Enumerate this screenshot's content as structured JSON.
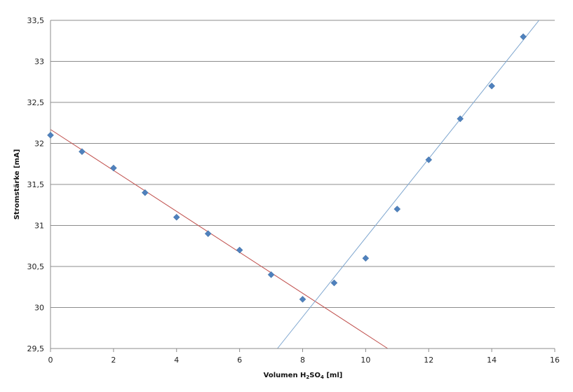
{
  "chart_data": {
    "type": "scatter",
    "title": "",
    "xlabel_parts": {
      "prefix": "Volumen H",
      "sub1": "2",
      "mid": "SO",
      "sub2": "4",
      "suffix": " [ml]"
    },
    "ylabel": "Stromstärke [mA]",
    "xlim": [
      0,
      16
    ],
    "ylim": [
      29.5,
      33.5
    ],
    "x_ticks": [
      "0",
      "2",
      "4",
      "6",
      "8",
      "10",
      "12",
      "14",
      "16"
    ],
    "y_ticks": [
      "29,5",
      "30",
      "30,5",
      "31",
      "31,5",
      "32",
      "32,5",
      "33",
      "33,5"
    ],
    "grid": "horizontal",
    "legend": "none",
    "series": [
      {
        "marker": "diamond",
        "color": "#4F81BD",
        "x": [
          0,
          1,
          2,
          3,
          4,
          5,
          6,
          7,
          8,
          9,
          10,
          11,
          12,
          13,
          14,
          15
        ],
        "y": [
          32.1,
          31.9,
          31.7,
          31.4,
          31.1,
          30.9,
          30.7,
          30.4,
          30.1,
          30.3,
          30.6,
          31.2,
          31.8,
          32.3,
          32.7,
          33.3
        ]
      }
    ],
    "trendlines": [
      {
        "color": "#C0504D",
        "x": [
          0,
          10.7
        ],
        "y": [
          32.17,
          29.5
        ]
      },
      {
        "color": "#7EA6CF",
        "x": [
          7.2,
          15.5
        ],
        "y": [
          29.5,
          33.5
        ]
      }
    ]
  }
}
